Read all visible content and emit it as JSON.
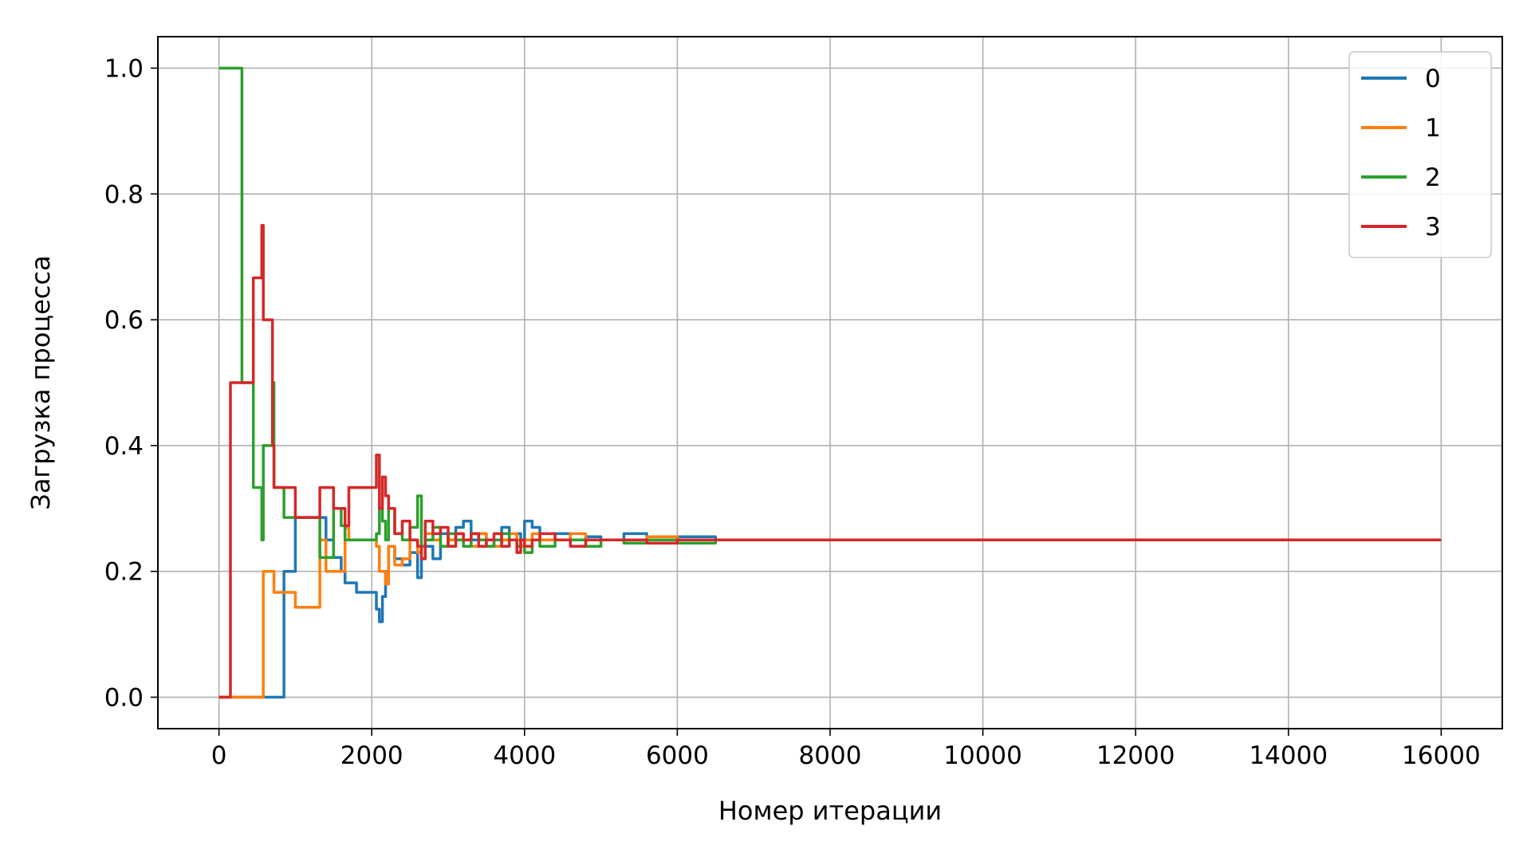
{
  "chart_data": {
    "type": "line",
    "title": "",
    "xlabel": "Номер итерации",
    "ylabel": "Загрузка процесса",
    "xlim": [
      -800,
      16800
    ],
    "ylim": [
      -0.05,
      1.05
    ],
    "xticks": [
      0,
      2000,
      4000,
      6000,
      8000,
      10000,
      12000,
      14000,
      16000
    ],
    "xtick_labels": [
      "0",
      "2000",
      "4000",
      "6000",
      "8000",
      "10000",
      "12000",
      "14000",
      "16000"
    ],
    "yticks": [
      0.0,
      0.2,
      0.4,
      0.6,
      0.8,
      1.0
    ],
    "ytick_labels": [
      "0.0",
      "0.2",
      "0.4",
      "0.6",
      "0.8",
      "1.0"
    ],
    "grid": true,
    "legend": "top-right",
    "series": [
      {
        "name": "0",
        "color": "#1f77b4",
        "x": [
          0,
          150,
          300,
          450,
          560,
          580,
          700,
          720,
          760,
          850,
          1000,
          1200,
          1320,
          1400,
          1500,
          1600,
          1650,
          1700,
          1800,
          2000,
          2060,
          2100,
          2140,
          2180,
          2220,
          2300,
          2400,
          2500,
          2600,
          2650,
          2700,
          2800,
          2900,
          3000,
          3100,
          3200,
          3300,
          3400,
          3500,
          3600,
          3700,
          3800,
          3900,
          3950,
          4000,
          4100,
          4200,
          4400,
          4600,
          4800,
          5000,
          5300,
          5600,
          6000,
          6500,
          7000,
          7500,
          8000,
          9000,
          10000,
          12000,
          14000,
          16000
        ],
        "y": [
          0.0,
          0.0,
          0.0,
          0.0,
          0.0,
          0.0,
          0.0,
          0.0,
          0.0,
          0.2,
          0.2857,
          0.2857,
          0.2857,
          0.25,
          0.2222,
          0.2,
          0.1818,
          0.1818,
          0.1667,
          0.1667,
          0.14,
          0.12,
          0.16,
          0.2,
          0.24,
          0.22,
          0.21,
          0.23,
          0.19,
          0.22,
          0.24,
          0.22,
          0.26,
          0.25,
          0.27,
          0.28,
          0.25,
          0.26,
          0.25,
          0.24,
          0.27,
          0.25,
          0.26,
          0.24,
          0.28,
          0.27,
          0.25,
          0.26,
          0.25,
          0.255,
          0.25,
          0.26,
          0.25,
          0.255,
          0.25,
          0.25,
          0.25,
          0.25,
          0.25,
          0.25,
          0.25,
          0.25,
          0.25
        ]
      },
      {
        "name": "1",
        "color": "#ff7f0e",
        "x": [
          0,
          150,
          300,
          450,
          560,
          580,
          700,
          720,
          760,
          850,
          1000,
          1200,
          1320,
          1400,
          1500,
          1600,
          1650,
          1700,
          1800,
          2000,
          2060,
          2100,
          2140,
          2180,
          2220,
          2300,
          2400,
          2500,
          2600,
          2650,
          2700,
          2800,
          2900,
          3000,
          3100,
          3200,
          3300,
          3400,
          3500,
          3600,
          3700,
          3800,
          3900,
          3950,
          4000,
          4100,
          4200,
          4400,
          4600,
          4800,
          5000,
          5300,
          5600,
          6000,
          6500,
          7000,
          7500,
          8000,
          9000,
          10000,
          12000,
          14000,
          16000
        ],
        "y": [
          0.0,
          0.0,
          0.0,
          0.0,
          0.0,
          0.2,
          0.2,
          0.1667,
          0.1667,
          0.1667,
          0.1429,
          0.1429,
          0.25,
          0.2,
          0.2,
          0.2,
          0.27,
          0.25,
          0.25,
          0.25,
          0.24,
          0.2,
          0.2,
          0.18,
          0.24,
          0.21,
          0.22,
          0.25,
          0.23,
          0.24,
          0.26,
          0.25,
          0.24,
          0.25,
          0.26,
          0.25,
          0.24,
          0.26,
          0.25,
          0.24,
          0.25,
          0.26,
          0.25,
          0.24,
          0.25,
          0.26,
          0.25,
          0.25,
          0.26,
          0.25,
          0.25,
          0.25,
          0.255,
          0.25,
          0.25,
          0.25,
          0.25,
          0.25,
          0.25,
          0.25,
          0.25,
          0.25,
          0.25
        ]
      },
      {
        "name": "2",
        "color": "#2ca02c",
        "x": [
          0,
          150,
          300,
          450,
          560,
          580,
          700,
          720,
          760,
          850,
          1000,
          1200,
          1320,
          1400,
          1500,
          1600,
          1650,
          1700,
          1800,
          2000,
          2060,
          2100,
          2140,
          2180,
          2220,
          2300,
          2400,
          2500,
          2600,
          2650,
          2700,
          2800,
          2900,
          3000,
          3100,
          3200,
          3300,
          3400,
          3500,
          3600,
          3700,
          3800,
          3900,
          3950,
          4000,
          4100,
          4200,
          4400,
          4600,
          4800,
          5000,
          5300,
          5600,
          6000,
          6500,
          7000,
          7500,
          8000,
          9000,
          10000,
          12000,
          14000,
          16000
        ],
        "y": [
          1.0,
          1.0,
          0.5,
          0.3333,
          0.25,
          0.4,
          0.5,
          0.3333,
          0.3333,
          0.2857,
          0.2857,
          0.2857,
          0.2222,
          0.2222,
          0.3,
          0.2727,
          0.25,
          0.25,
          0.25,
          0.25,
          0.26,
          0.3,
          0.28,
          0.25,
          0.3,
          0.26,
          0.25,
          0.27,
          0.32,
          0.24,
          0.25,
          0.27,
          0.24,
          0.26,
          0.25,
          0.24,
          0.26,
          0.25,
          0.24,
          0.25,
          0.26,
          0.25,
          0.24,
          0.25,
          0.23,
          0.25,
          0.24,
          0.25,
          0.25,
          0.24,
          0.25,
          0.245,
          0.25,
          0.245,
          0.25,
          0.25,
          0.25,
          0.25,
          0.25,
          0.25,
          0.25,
          0.25,
          0.25
        ]
      },
      {
        "name": "3",
        "color": "#d62728",
        "x": [
          0,
          150,
          300,
          450,
          560,
          580,
          700,
          720,
          760,
          850,
          1000,
          1200,
          1320,
          1400,
          1500,
          1600,
          1650,
          1700,
          1800,
          2000,
          2060,
          2100,
          2140,
          2180,
          2220,
          2300,
          2400,
          2500,
          2600,
          2650,
          2700,
          2800,
          2900,
          3000,
          3100,
          3200,
          3300,
          3400,
          3500,
          3600,
          3700,
          3800,
          3900,
          3950,
          4000,
          4100,
          4200,
          4400,
          4600,
          4800,
          5000,
          5300,
          5600,
          6000,
          6500,
          7000,
          7500,
          8000,
          9000,
          10000,
          12000,
          14000,
          16000
        ],
        "y": [
          0.0,
          0.5,
          0.5,
          0.6667,
          0.75,
          0.6,
          0.4,
          0.3333,
          0.3333,
          0.3333,
          0.2857,
          0.2857,
          0.3333,
          0.3333,
          0.3,
          0.3,
          0.2727,
          0.3333,
          0.3333,
          0.3333,
          0.385,
          0.3,
          0.35,
          0.32,
          0.3,
          0.26,
          0.28,
          0.25,
          0.24,
          0.22,
          0.28,
          0.26,
          0.27,
          0.24,
          0.26,
          0.25,
          0.26,
          0.24,
          0.25,
          0.26,
          0.24,
          0.25,
          0.23,
          0.25,
          0.24,
          0.25,
          0.26,
          0.25,
          0.24,
          0.25,
          0.25,
          0.25,
          0.245,
          0.25,
          0.25,
          0.25,
          0.25,
          0.25,
          0.25,
          0.25,
          0.25,
          0.25,
          0.25
        ]
      }
    ]
  }
}
